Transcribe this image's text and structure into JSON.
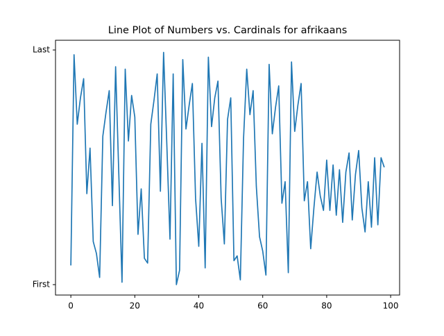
{
  "chart_data": {
    "type": "line",
    "title": "Line Plot of Numbers vs. Cardinals for afrikaans",
    "x": [
      0,
      1,
      2,
      3,
      4,
      5,
      6,
      7,
      8,
      9,
      10,
      11,
      12,
      13,
      14,
      15,
      16,
      17,
      18,
      19,
      20,
      21,
      22,
      23,
      24,
      25,
      26,
      27,
      28,
      29,
      30,
      31,
      32,
      33,
      34,
      35,
      36,
      37,
      38,
      39,
      40,
      41,
      42,
      43,
      44,
      45,
      46,
      47,
      48,
      49,
      50,
      51,
      52,
      53,
      54,
      55,
      56,
      57,
      58,
      59,
      60,
      61,
      62,
      63,
      64,
      65,
      66,
      67,
      68,
      69,
      70,
      71,
      72,
      73,
      74,
      75,
      76,
      77,
      78,
      79,
      80,
      81,
      82,
      83,
      84,
      85,
      86,
      87,
      88,
      89,
      90,
      91,
      92,
      93,
      94,
      95,
      96,
      97,
      98
    ],
    "series": [
      {
        "color": "#1f77b4",
        "values": [
          8,
          96,
          67,
          78,
          86,
          38,
          57,
          18,
          13,
          3,
          62,
          72,
          81,
          33,
          91,
          46,
          1,
          90,
          60,
          79,
          70,
          21,
          40,
          11,
          9,
          67,
          77,
          88,
          39,
          97,
          59,
          19,
          88,
          0,
          6,
          94,
          65,
          75,
          84,
          36,
          16,
          59,
          7,
          95,
          66,
          78,
          85,
          36,
          17,
          69,
          78,
          10,
          12,
          2,
          61,
          90,
          71,
          81,
          41,
          20,
          14,
          4,
          92,
          63,
          74,
          83,
          34,
          43,
          5,
          93,
          64,
          75,
          84,
          35,
          43,
          15,
          32,
          47,
          37,
          31,
          52,
          31,
          50,
          29,
          48,
          26,
          47,
          55,
          27,
          46,
          56,
          32,
          22,
          43,
          24,
          53,
          25,
          53,
          49
        ]
      }
    ],
    "xlim": [
      -4.8,
      102.8
    ],
    "xticks": [
      0,
      20,
      40,
      60,
      80,
      100
    ],
    "ylim": [
      -4.35,
      102.06
    ],
    "yticks": [
      {
        "value": 0,
        "label": "First"
      },
      {
        "value": 98,
        "label": "Last"
      }
    ]
  }
}
